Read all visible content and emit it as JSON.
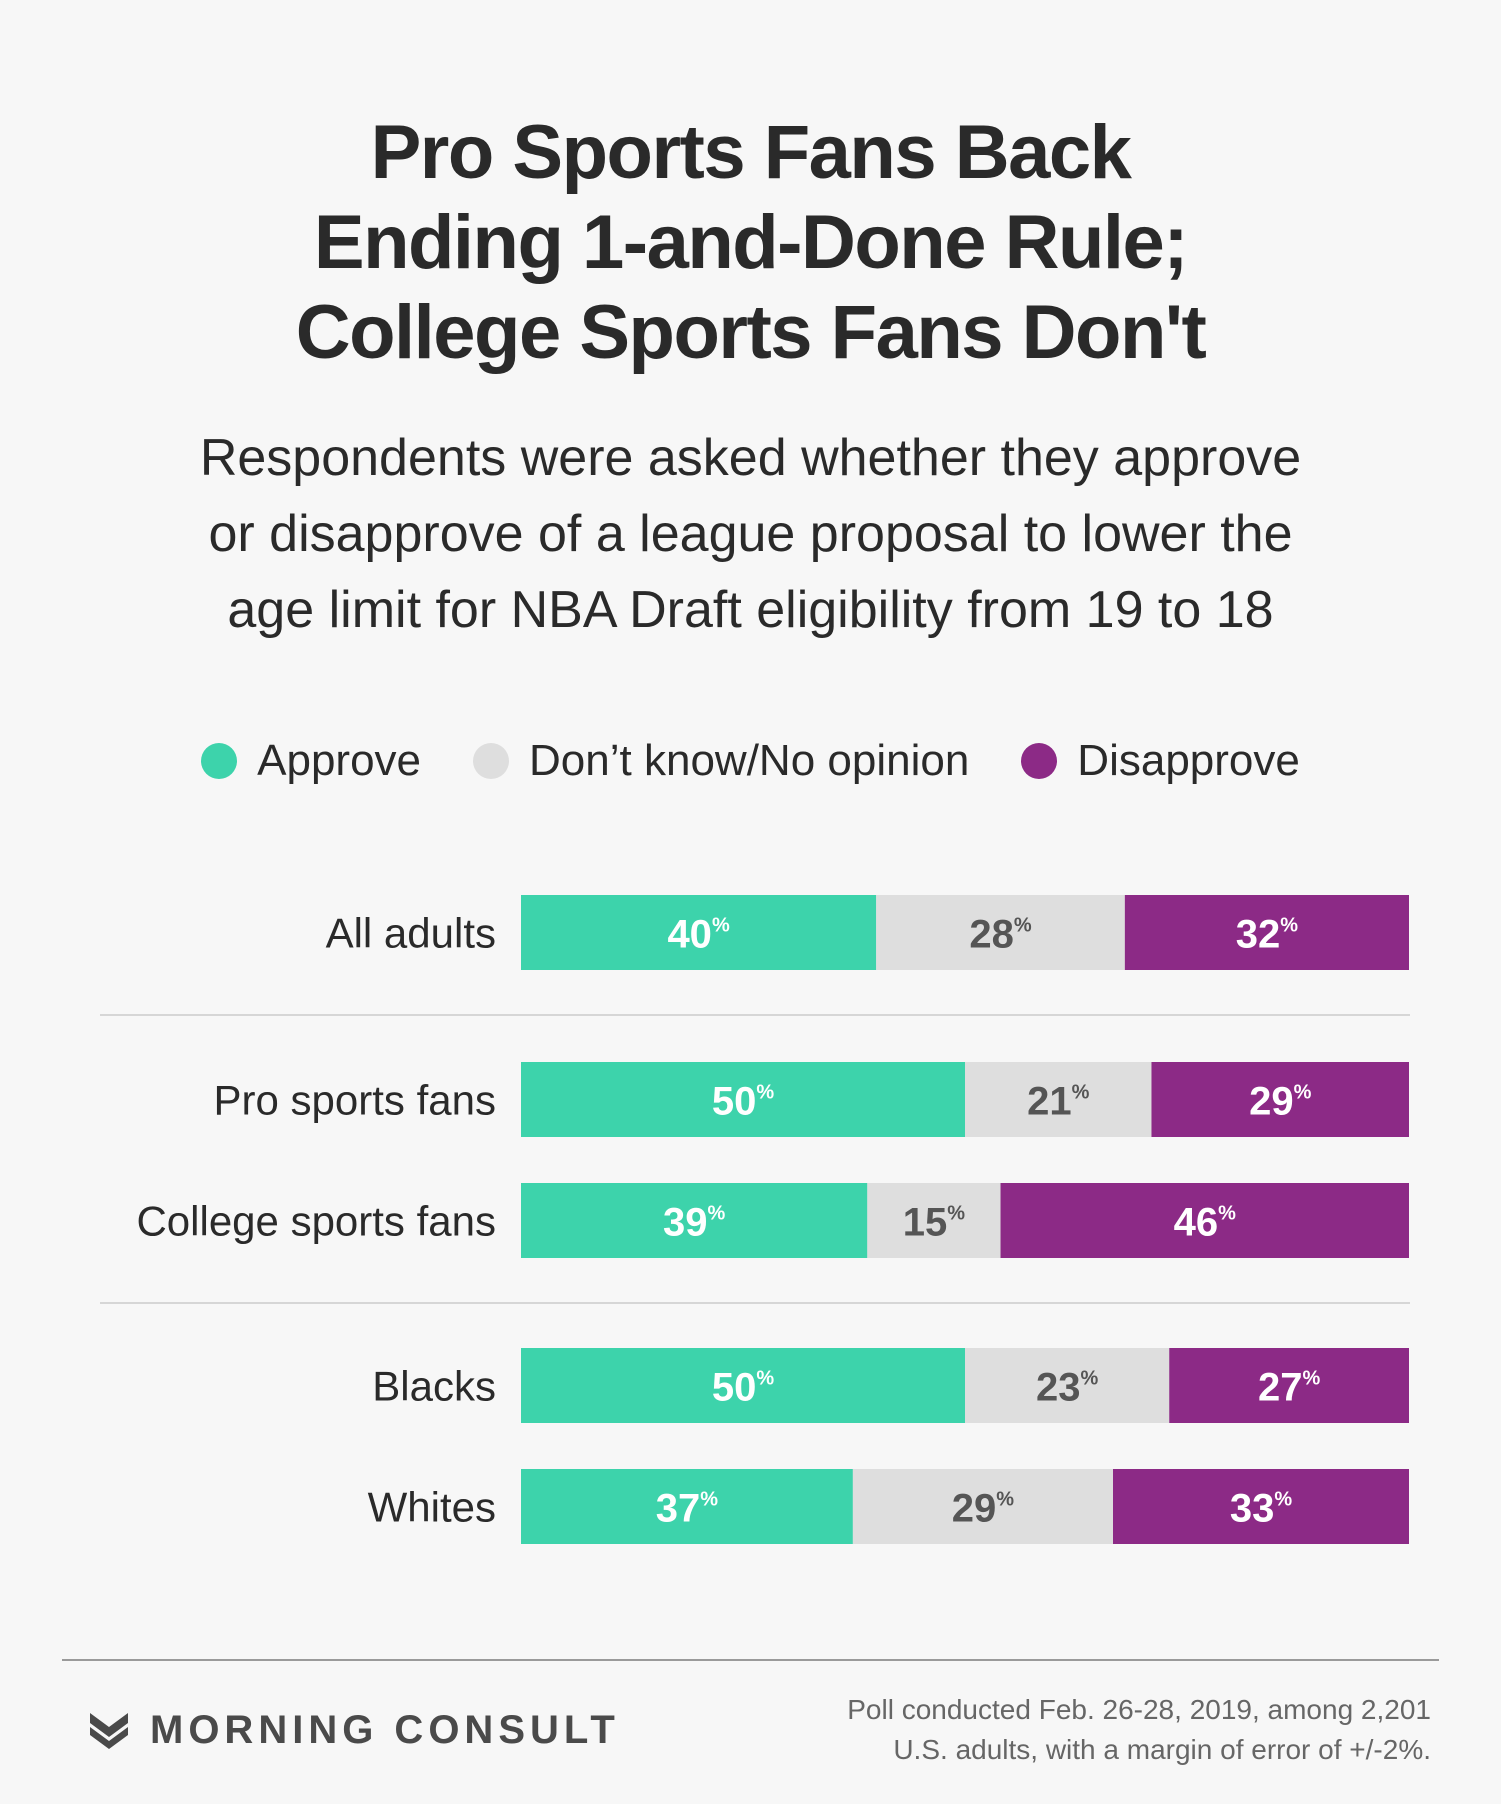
{
  "header": {
    "title_lines": [
      "Pro Sports Fans Back",
      "Ending 1-and-Done Rule;",
      "College Sports Fans Don't"
    ],
    "subtitle_lines": [
      "Respondents were asked whether they approve",
      "or disapprove of a league proposal to lower the",
      "age limit for NBA Draft eligibility from 19 to 18"
    ]
  },
  "legend": [
    {
      "label": "Approve",
      "color": "#3dd3ab"
    },
    {
      "label": "Don’t know/No opinion",
      "color": "#dedede"
    },
    {
      "label": "Disapprove",
      "color": "#8c2a86"
    }
  ],
  "chart_data": {
    "type": "bar",
    "stacked": true,
    "orientation": "horizontal",
    "unit": "%",
    "categories": [
      "All adults",
      "Pro sports fans",
      "College sports fans",
      "Blacks",
      "Whites"
    ],
    "series": [
      {
        "name": "Approve",
        "color": "#3dd3ab",
        "label_color": "#ffffff",
        "values": [
          40,
          50,
          39,
          50,
          37
        ]
      },
      {
        "name": "Don’t know/No opinion",
        "color": "#dedede",
        "label_color": "#555555",
        "values": [
          28,
          21,
          15,
          23,
          29
        ]
      },
      {
        "name": "Disapprove",
        "color": "#8c2a86",
        "label_color": "#ffffff",
        "values": [
          32,
          29,
          46,
          27,
          33
        ]
      }
    ]
  },
  "footer": {
    "brand": "MORNING CONSULT",
    "note_lines": [
      "Poll conducted Feb. 26-28, 2019, among 2,201",
      "U.S. adults, with a margin of error of +/-2%."
    ]
  }
}
